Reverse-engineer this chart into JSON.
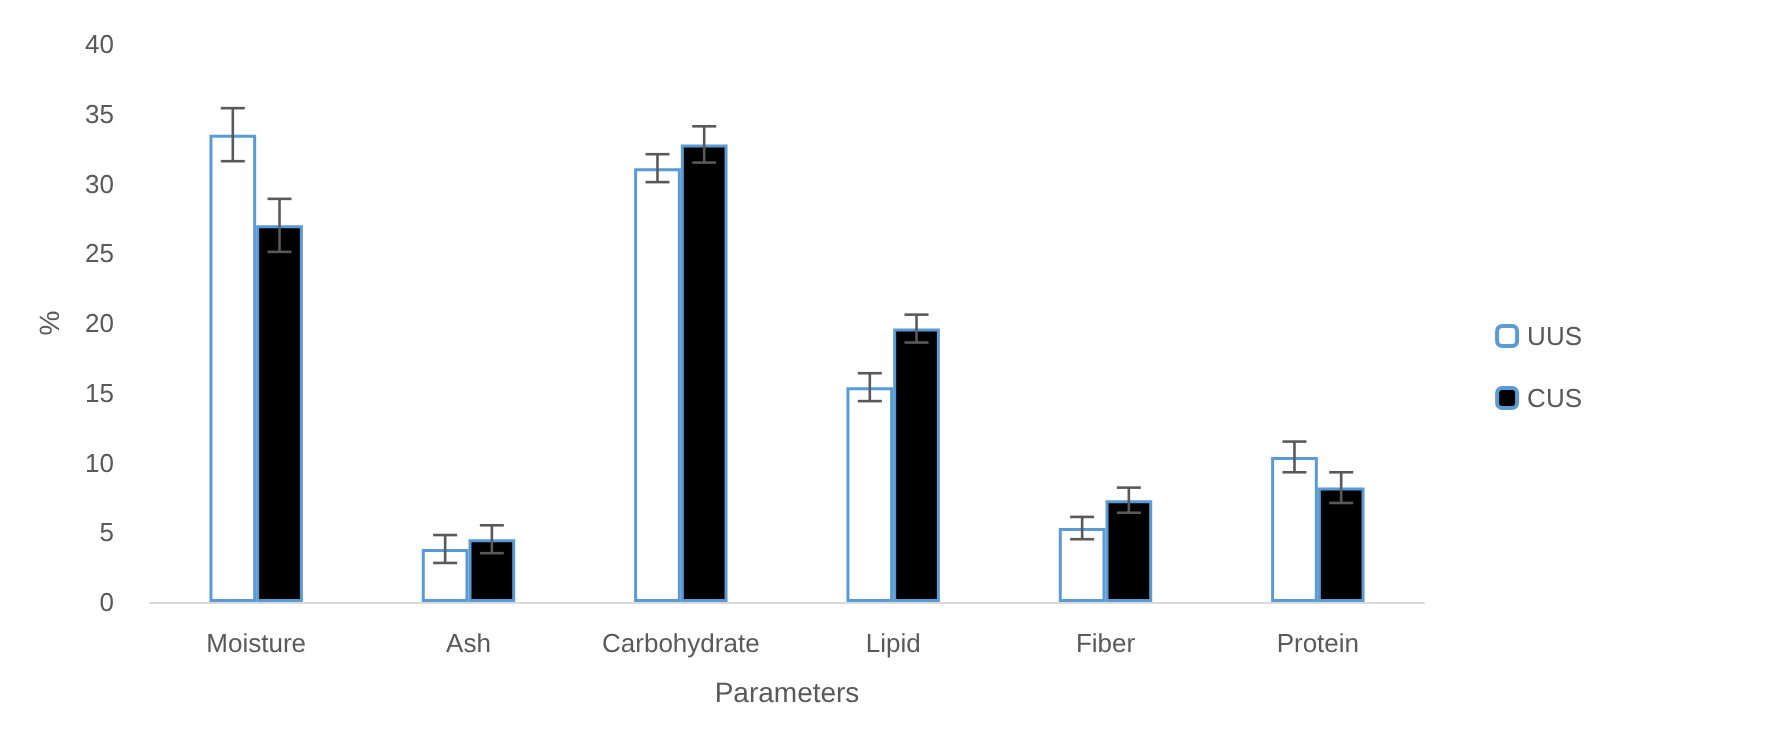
{
  "chart_data": {
    "type": "bar",
    "xlabel": "Parameters",
    "ylabel": "%",
    "categories": [
      "Moisture",
      "Ash",
      "Carbohydrate",
      "Lipid",
      "Fiber",
      "Protein"
    ],
    "series": [
      {
        "name": "UUS",
        "color": "#ffffff",
        "values": [
          33.5,
          3.8,
          31.1,
          15.4,
          5.3,
          10.4
        ],
        "errors": [
          1.9,
          1.0,
          1.0,
          1.0,
          0.8,
          1.1
        ]
      },
      {
        "name": "CUS",
        "color": "#000000",
        "values": [
          27.0,
          4.5,
          32.8,
          19.6,
          7.3,
          8.2
        ],
        "errors": [
          1.9,
          1.0,
          1.3,
          1.0,
          0.9,
          1.1
        ]
      }
    ],
    "ylim": [
      0,
      40
    ],
    "yticks": [
      0,
      5,
      10,
      15,
      20,
      25,
      30,
      35,
      40
    ],
    "grid": false,
    "legend": "right"
  }
}
